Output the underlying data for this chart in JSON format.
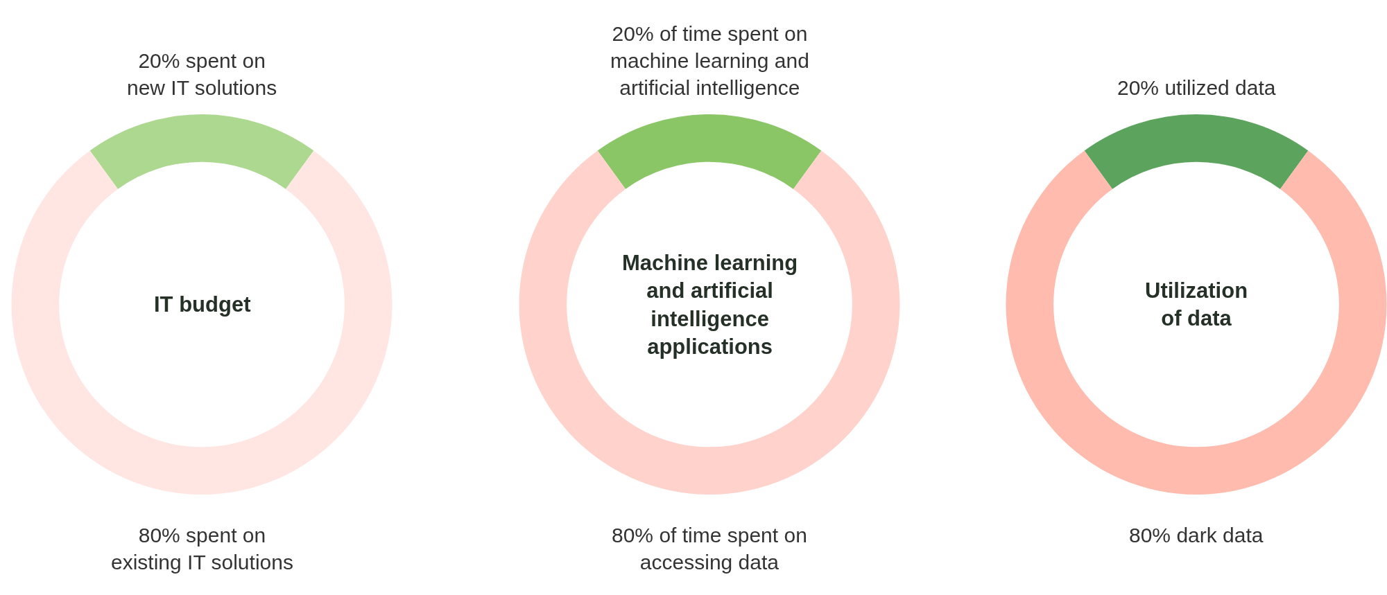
{
  "chart_data": [
    {
      "type": "donut",
      "title": "IT budget",
      "categories": [
        "20% spent on\nnew IT solutions",
        "80% spent on\nexisting IT solutions"
      ],
      "values": [
        20,
        80
      ],
      "colors": [
        "#add890",
        "#ffe6e2"
      ]
    },
    {
      "type": "donut",
      "title": "Machine learning\nand artificial\nintelligence\napplications",
      "categories": [
        "20% of time spent on\nmachine learning and\nartificial intelligence",
        "80% of time spent on\naccessing data"
      ],
      "values": [
        20,
        80
      ],
      "colors": [
        "#8bc666",
        "#ffd3cc"
      ]
    },
    {
      "type": "donut",
      "title": "Utilization\nof data",
      "categories": [
        "20% utilized data",
        "80% dark data"
      ],
      "values": [
        20,
        80
      ],
      "colors": [
        "#5ca35d",
        "#ffbbad"
      ]
    }
  ]
}
